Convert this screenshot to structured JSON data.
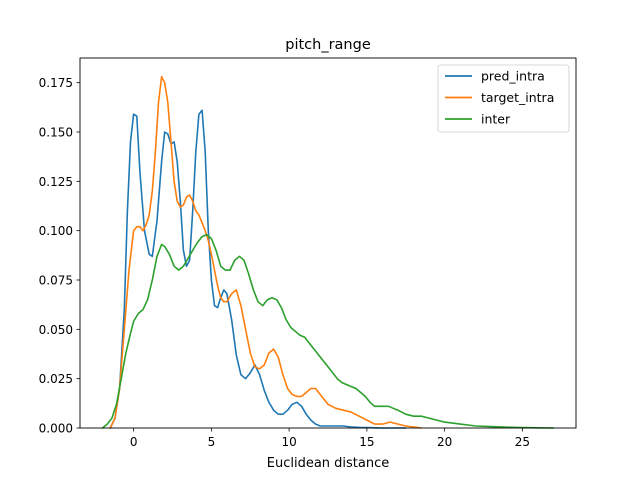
{
  "chart_data": {
    "type": "line",
    "title": "pitch_range",
    "xlabel": "Euclidean distance",
    "ylabel": "",
    "xlim": [
      -3.45,
      28.45
    ],
    "ylim": [
      0,
      0.1875
    ],
    "grid": false,
    "legend_position": "top-right",
    "x_ticks": [
      0,
      5,
      10,
      15,
      20,
      25
    ],
    "y_ticks": [
      0.0,
      0.025,
      0.05,
      0.075,
      0.1,
      0.125,
      0.15,
      0.175
    ],
    "x_tick_labels": [
      "0",
      "5",
      "10",
      "15",
      "20",
      "25"
    ],
    "y_tick_labels": [
      "0.000",
      "0.025",
      "0.050",
      "0.075",
      "0.100",
      "0.125",
      "0.150",
      "0.175"
    ],
    "series": [
      {
        "name": "pred_intra",
        "color": "#1f77b4",
        "x": [
          -1.5,
          -1.2,
          -0.9,
          -0.6,
          -0.4,
          -0.2,
          0.0,
          0.2,
          0.4,
          0.7,
          1.0,
          1.2,
          1.5,
          1.8,
          2.0,
          2.2,
          2.4,
          2.6,
          2.8,
          3.0,
          3.2,
          3.4,
          3.6,
          3.8,
          4.0,
          4.2,
          4.4,
          4.6,
          4.8,
          5.0,
          5.2,
          5.4,
          5.6,
          5.8,
          6.0,
          6.3,
          6.6,
          6.9,
          7.2,
          7.5,
          7.8,
          8.1,
          8.4,
          8.7,
          9.0,
          9.3,
          9.6,
          9.9,
          10.2,
          10.5,
          10.8,
          11.1,
          11.4,
          11.7,
          12.0,
          12.3,
          12.6,
          13.0,
          13.5,
          14.0,
          14.5,
          15.0,
          15.5,
          16.0,
          16.5,
          17.0,
          17.5
        ],
        "y": [
          0.0,
          0.005,
          0.02,
          0.06,
          0.11,
          0.145,
          0.159,
          0.158,
          0.13,
          0.1,
          0.088,
          0.087,
          0.105,
          0.135,
          0.15,
          0.149,
          0.144,
          0.145,
          0.135,
          0.115,
          0.09,
          0.082,
          0.085,
          0.11,
          0.14,
          0.159,
          0.161,
          0.14,
          0.1,
          0.075,
          0.062,
          0.061,
          0.066,
          0.07,
          0.068,
          0.055,
          0.037,
          0.027,
          0.025,
          0.028,
          0.032,
          0.027,
          0.019,
          0.013,
          0.009,
          0.007,
          0.007,
          0.009,
          0.012,
          0.013,
          0.011,
          0.007,
          0.004,
          0.002,
          0.001,
          0.001,
          0.001,
          0.001,
          0.001,
          0.0005,
          0.0003,
          0.0002,
          0.0001,
          0.0,
          0.0,
          0.0,
          0.0
        ]
      },
      {
        "name": "target_intra",
        "color": "#ff7f0e",
        "x": [
          -1.5,
          -1.2,
          -0.9,
          -0.6,
          -0.3,
          0.0,
          0.2,
          0.4,
          0.6,
          0.8,
          1.0,
          1.2,
          1.4,
          1.6,
          1.8,
          2.0,
          2.2,
          2.4,
          2.6,
          2.8,
          3.0,
          3.2,
          3.4,
          3.6,
          3.8,
          4.0,
          4.2,
          4.4,
          4.6,
          4.8,
          5.0,
          5.2,
          5.4,
          5.6,
          5.8,
          6.0,
          6.3,
          6.6,
          6.9,
          7.2,
          7.5,
          7.8,
          8.1,
          8.4,
          8.7,
          9.0,
          9.3,
          9.6,
          9.9,
          10.2,
          10.5,
          10.8,
          11.1,
          11.4,
          11.7,
          12.0,
          12.5,
          13.0,
          13.5,
          14.0,
          14.5,
          15.0,
          15.5,
          16.0,
          16.5,
          17.0,
          17.5,
          18.0,
          18.5
        ],
        "y": [
          0.0,
          0.005,
          0.02,
          0.05,
          0.08,
          0.1,
          0.102,
          0.102,
          0.1,
          0.103,
          0.108,
          0.12,
          0.14,
          0.165,
          0.178,
          0.175,
          0.165,
          0.145,
          0.125,
          0.115,
          0.112,
          0.113,
          0.117,
          0.118,
          0.115,
          0.11,
          0.108,
          0.104,
          0.1,
          0.095,
          0.088,
          0.08,
          0.072,
          0.066,
          0.064,
          0.064,
          0.068,
          0.07,
          0.062,
          0.05,
          0.038,
          0.031,
          0.03,
          0.032,
          0.038,
          0.04,
          0.036,
          0.027,
          0.02,
          0.017,
          0.016,
          0.016,
          0.018,
          0.02,
          0.02,
          0.017,
          0.012,
          0.01,
          0.009,
          0.008,
          0.006,
          0.004,
          0.002,
          0.002,
          0.003,
          0.002,
          0.001,
          0.0005,
          0.0
        ]
      },
      {
        "name": "inter",
        "color": "#2ca02c",
        "x": [
          -2.0,
          -1.7,
          -1.4,
          -1.1,
          -0.8,
          -0.5,
          -0.2,
          0.0,
          0.3,
          0.6,
          0.9,
          1.2,
          1.5,
          1.8,
          2.0,
          2.3,
          2.6,
          2.9,
          3.2,
          3.5,
          3.8,
          4.1,
          4.4,
          4.7,
          5.0,
          5.3,
          5.6,
          5.9,
          6.2,
          6.5,
          6.8,
          7.1,
          7.4,
          7.7,
          8.0,
          8.3,
          8.6,
          8.9,
          9.2,
          9.5,
          9.8,
          10.1,
          10.4,
          10.7,
          11.0,
          11.3,
          11.6,
          11.9,
          12.2,
          12.5,
          12.8,
          13.1,
          13.4,
          13.7,
          14.0,
          14.3,
          14.6,
          14.9,
          15.2,
          15.5,
          15.8,
          16.1,
          16.4,
          16.7,
          17.0,
          17.5,
          18.0,
          18.5,
          19.0,
          19.5,
          20.0,
          20.5,
          21.0,
          21.5,
          22.0,
          23.0,
          24.0,
          25.0,
          26.0,
          27.0
        ],
        "y": [
          0.0,
          0.002,
          0.005,
          0.012,
          0.025,
          0.038,
          0.048,
          0.054,
          0.058,
          0.06,
          0.065,
          0.075,
          0.087,
          0.093,
          0.092,
          0.088,
          0.082,
          0.08,
          0.082,
          0.086,
          0.09,
          0.094,
          0.097,
          0.098,
          0.096,
          0.09,
          0.082,
          0.08,
          0.08,
          0.085,
          0.087,
          0.085,
          0.078,
          0.07,
          0.064,
          0.062,
          0.065,
          0.066,
          0.065,
          0.061,
          0.055,
          0.051,
          0.049,
          0.047,
          0.046,
          0.043,
          0.04,
          0.037,
          0.034,
          0.031,
          0.028,
          0.025,
          0.023,
          0.022,
          0.021,
          0.02,
          0.018,
          0.016,
          0.013,
          0.011,
          0.011,
          0.011,
          0.011,
          0.01,
          0.009,
          0.007,
          0.006,
          0.006,
          0.005,
          0.004,
          0.003,
          0.0025,
          0.002,
          0.0015,
          0.001,
          0.0007,
          0.0004,
          0.0002,
          0.0001,
          0.0
        ]
      }
    ]
  }
}
